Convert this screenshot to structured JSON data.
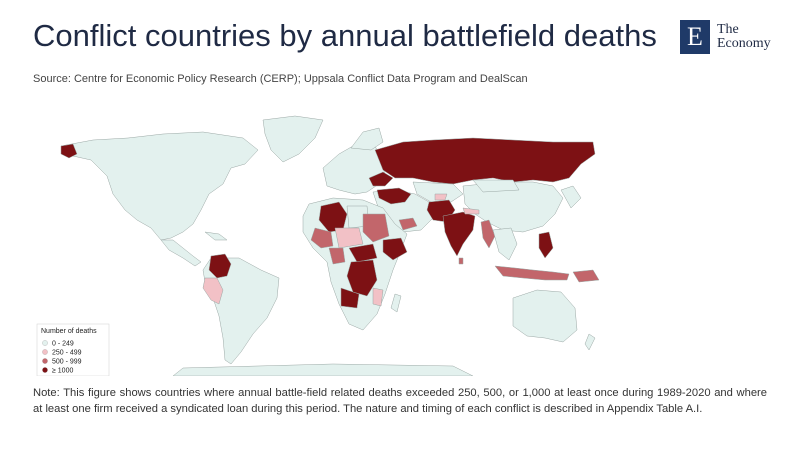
{
  "title": "Conflict countries by annual battlefield deaths",
  "logo": {
    "letter": "E",
    "line1": "The",
    "line2": "Economy"
  },
  "source": "Source: Centre for Economic Policy Research (CERP); Uppsala Conflict Data Program and DealScan",
  "map": {
    "legend": {
      "title": "Number of deaths",
      "items": [
        {
          "label": "0 - 249",
          "color": "#e3f1ee"
        },
        {
          "label": "250 - 499",
          "color": "#f2c1c6"
        },
        {
          "label": "500 - 999",
          "color": "#c2666b"
        },
        {
          "label": "≥ 1000",
          "color": "#7d1114"
        }
      ]
    },
    "colors": {
      "ocean": "#ffffff",
      "land": "#e3f1ee",
      "border": "#9aa7a4"
    }
  },
  "note": "Note: This figure shows countries where annual battle-field related deaths exceeded 250, 500, or 1,000 at least once during 1989-2020 and where at least one firm received a syndicated loan during this period. The nature and timing of each conflict is described in Appendix Table A.I."
}
